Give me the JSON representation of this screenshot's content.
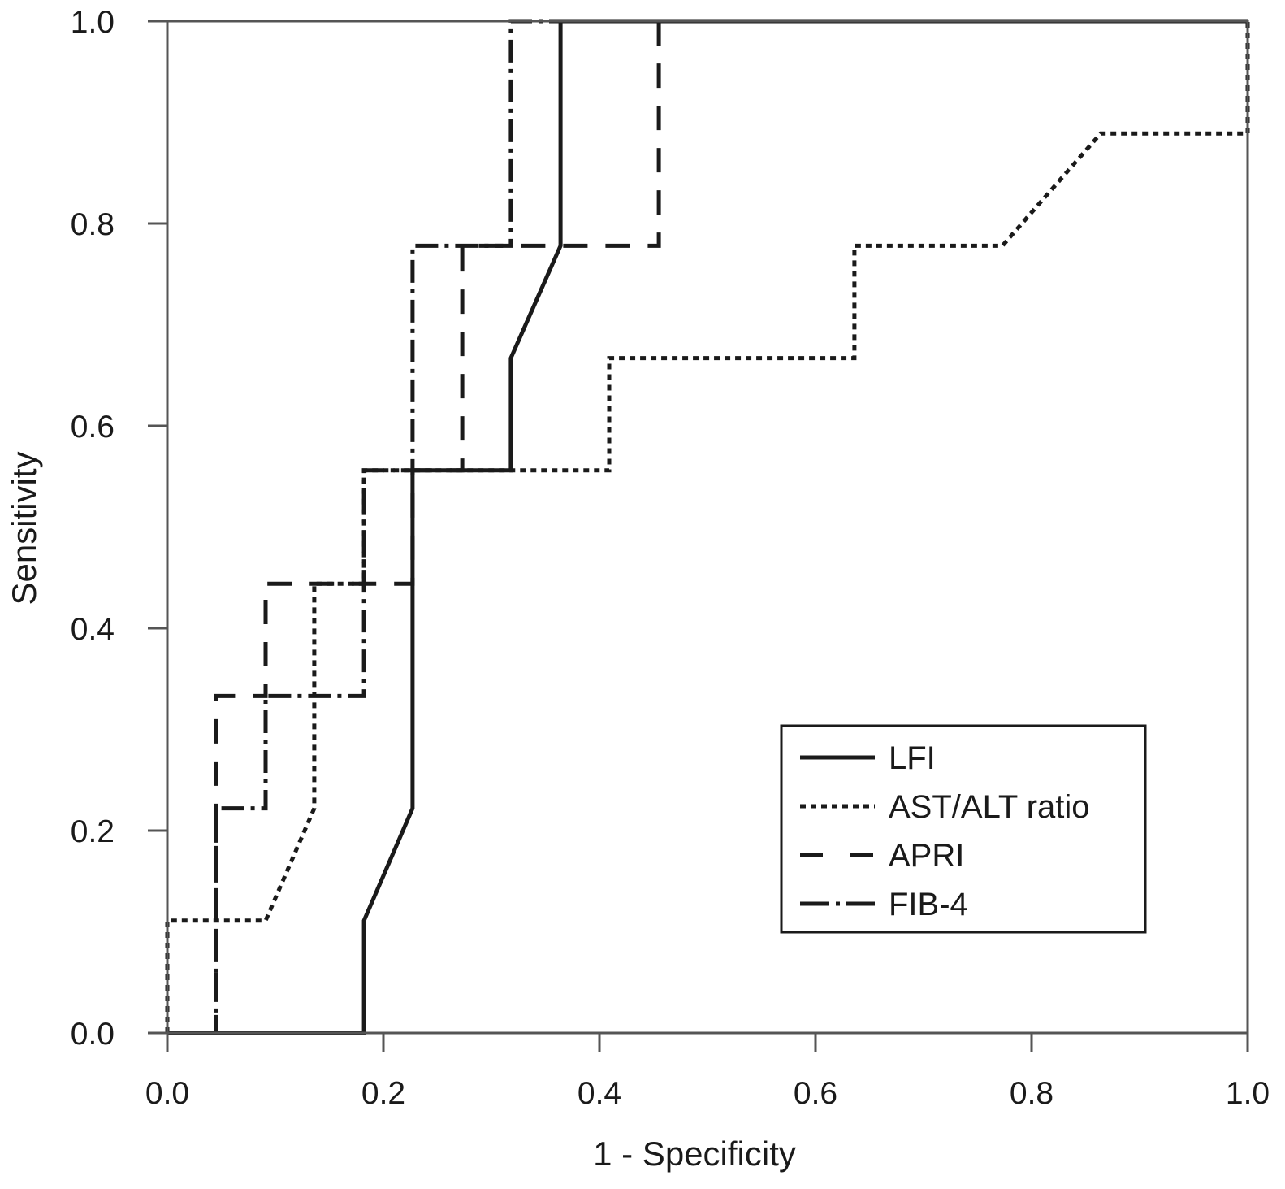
{
  "chart_data": {
    "type": "line",
    "title": "",
    "xlabel": "1 - Specificity",
    "ylabel": "Sensitivity",
    "xlim": [
      0,
      1
    ],
    "ylim": [
      0,
      1
    ],
    "xticks": [
      "0.0",
      "0.2",
      "0.4",
      "0.6",
      "0.8",
      "1.0"
    ],
    "yticks": [
      "0.0",
      "0.2",
      "0.4",
      "0.6",
      "0.8",
      "1.0"
    ],
    "grid": false,
    "legend_position": "bottom-right",
    "series": [
      {
        "name": "LFI",
        "style": "solid",
        "color": "#1a1a1a",
        "x": [
          0,
          0.182,
          0.182,
          0.227,
          0.227,
          0.318,
          0.318,
          0.364,
          0.364,
          1.0
        ],
        "y": [
          0,
          0,
          0.111,
          0.222,
          0.556,
          0.556,
          0.667,
          0.778,
          1.0,
          1.0
        ]
      },
      {
        "name": "AST/ALT ratio",
        "style": "dotted",
        "color": "#1a1a1a",
        "x": [
          0,
          0,
          0.091,
          0.136,
          0.136,
          0.182,
          0.182,
          0.409,
          0.409,
          0.636,
          0.636,
          0.773,
          0.864,
          1.0,
          1.0
        ],
        "y": [
          0,
          0.111,
          0.111,
          0.222,
          0.444,
          0.444,
          0.556,
          0.556,
          0.667,
          0.667,
          0.778,
          0.778,
          0.889,
          0.889,
          1.0
        ]
      },
      {
        "name": "APRI",
        "style": "dashed",
        "color": "#1a1a1a",
        "x": [
          0,
          0.045,
          0.045,
          0.091,
          0.091,
          0.227,
          0.227,
          0.273,
          0.273,
          0.455,
          0.455,
          1.0
        ],
        "y": [
          0,
          0,
          0.333,
          0.333,
          0.444,
          0.444,
          0.556,
          0.556,
          0.778,
          0.778,
          1.0,
          1.0
        ]
      },
      {
        "name": "FIB-4",
        "style": "dashdot",
        "color": "#1a1a1a",
        "x": [
          0,
          0.045,
          0.045,
          0.091,
          0.091,
          0.182,
          0.182,
          0.227,
          0.227,
          0.318,
          0.318,
          1.0
        ],
        "y": [
          0,
          0,
          0.222,
          0.222,
          0.333,
          0.333,
          0.556,
          0.556,
          0.778,
          0.778,
          1.0,
          1.0
        ]
      }
    ]
  }
}
